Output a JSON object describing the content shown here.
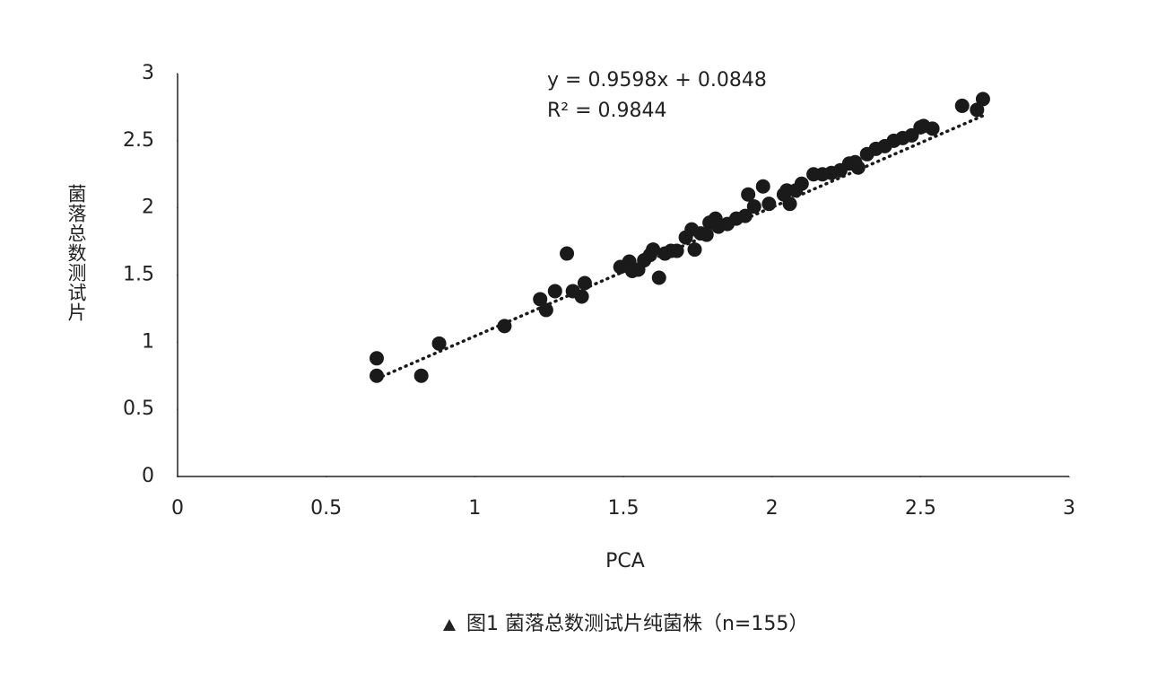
{
  "chart_data": {
    "type": "scatter",
    "x_label": "PCA",
    "y_label": "菌落总数测试片",
    "equation": "y = 0.9598x + 0.0848",
    "r_squared": "R² = 0.9844",
    "caption": "图1 菌落总数测试片纯菌株（n=155）",
    "color": "#1a1a1a",
    "xlim": [
      0,
      3
    ],
    "xticks": [
      0,
      0.5,
      1,
      1.5,
      2,
      2.5,
      3
    ],
    "ylim": [
      0,
      3
    ],
    "yticks": [
      0,
      0.5,
      1,
      1.5,
      2,
      2.5,
      3
    ],
    "trendline": {
      "slope": 0.9598,
      "intercept": 0.0848,
      "x": [
        0.67,
        2.71
      ]
    },
    "x": [
      0.67,
      0.67,
      0.82,
      0.88,
      1.1,
      1.22,
      1.24,
      1.27,
      1.31,
      1.33,
      1.36,
      1.37,
      1.49,
      1.52,
      1.53,
      1.55,
      1.57,
      1.59,
      1.6,
      1.62,
      1.64,
      1.66,
      1.68,
      1.71,
      1.73,
      1.74,
      1.76,
      1.78,
      1.79,
      1.81,
      1.82,
      1.85,
      1.88,
      1.91,
      1.92,
      1.94,
      1.97,
      1.99,
      2.04,
      2.05,
      2.06,
      2.08,
      2.1,
      2.14,
      2.17,
      2.2,
      2.23,
      2.26,
      2.28,
      2.29,
      2.32,
      2.35,
      2.38,
      2.41,
      2.44,
      2.47,
      2.5,
      2.51,
      2.54,
      2.64,
      2.69,
      2.71
    ],
    "values": [
      0.88,
      0.75,
      0.75,
      0.99,
      1.12,
      1.32,
      1.24,
      1.38,
      1.66,
      1.38,
      1.34,
      1.44,
      1.56,
      1.6,
      1.53,
      1.54,
      1.61,
      1.65,
      1.69,
      1.48,
      1.66,
      1.68,
      1.68,
      1.78,
      1.84,
      1.69,
      1.81,
      1.8,
      1.89,
      1.92,
      1.86,
      1.88,
      1.92,
      1.94,
      2.1,
      2.01,
      2.16,
      2.03,
      2.1,
      2.13,
      2.03,
      2.13,
      2.18,
      2.25,
      2.25,
      2.26,
      2.28,
      2.33,
      2.34,
      2.3,
      2.4,
      2.44,
      2.46,
      2.5,
      2.52,
      2.54,
      2.6,
      2.61,
      2.59,
      2.76,
      2.73,
      2.81
    ]
  }
}
